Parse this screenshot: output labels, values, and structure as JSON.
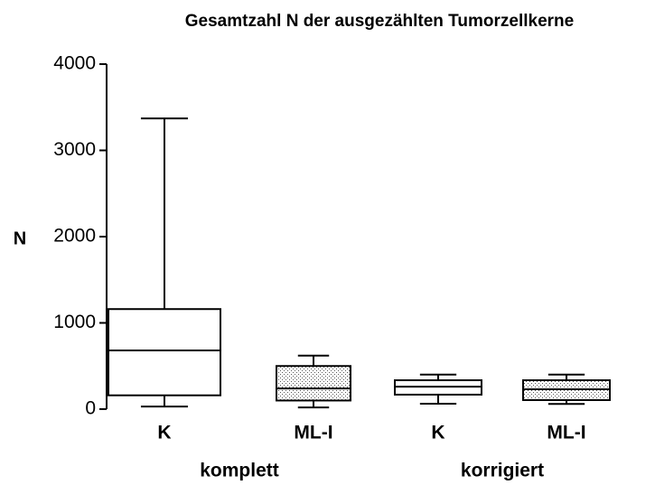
{
  "chart_data": {
    "type": "box",
    "title": "Gesamtzahl N der ausgezählten Tumorzellkerne",
    "ylabel": "N",
    "categories": [
      "K",
      "ML-I",
      "K",
      "ML-I"
    ],
    "groups": [
      "komplett",
      "korrigiert"
    ],
    "boxes": [
      {
        "min": 30,
        "q1": 160,
        "median": 680,
        "q3": 1160,
        "max": 3370,
        "fill": "white"
      },
      {
        "min": 20,
        "q1": 100,
        "median": 240,
        "q3": 500,
        "max": 620,
        "fill": "dotted"
      },
      {
        "min": 63,
        "q1": 168,
        "median": 260,
        "q3": 335,
        "max": 400,
        "fill": "white"
      },
      {
        "min": 60,
        "q1": 105,
        "median": 230,
        "q3": 335,
        "max": 400,
        "fill": "dotted"
      }
    ],
    "ylim": [
      0,
      4000
    ],
    "yticks": [
      0,
      1000,
      2000,
      3000,
      4000
    ]
  }
}
